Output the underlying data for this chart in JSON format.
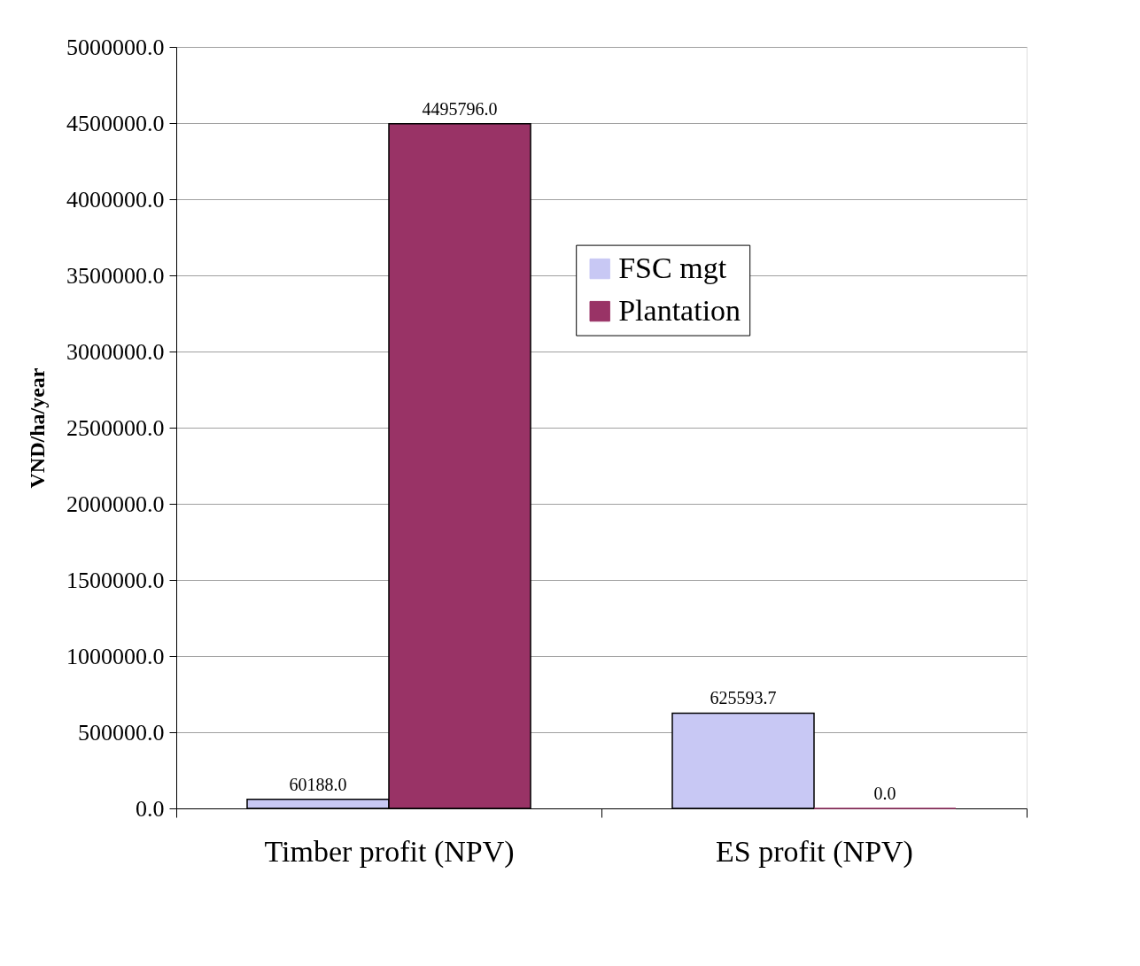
{
  "chart_data": {
    "type": "bar",
    "ylabel": "VND/ha/year",
    "categories": [
      "Timber profit (NPV)",
      "ES profit (NPV)"
    ],
    "series": [
      {
        "name": "FSC mgt",
        "color": "#c8c8f4",
        "values": [
          60188.0,
          625593.7
        ],
        "value_labels": [
          "60188.0",
          "625593.7"
        ]
      },
      {
        "name": "Plantation",
        "color": "#993366",
        "values": [
          4495796.0,
          0.0
        ],
        "value_labels": [
          "4495796.0",
          "0.0"
        ]
      }
    ],
    "ylim": [
      0,
      5000000
    ],
    "yticks": [
      {
        "value": 0,
        "label": "0.0"
      },
      {
        "value": 500000,
        "label": "500000.0"
      },
      {
        "value": 1000000,
        "label": "1000000.0"
      },
      {
        "value": 1500000,
        "label": "1500000.0"
      },
      {
        "value": 2000000,
        "label": "2000000.0"
      },
      {
        "value": 2500000,
        "label": "2500000.0"
      },
      {
        "value": 3000000,
        "label": "3000000.0"
      },
      {
        "value": 3500000,
        "label": "3500000.0"
      },
      {
        "value": 4000000,
        "label": "4000000.0"
      },
      {
        "value": 4500000,
        "label": "4500000.0"
      },
      {
        "value": 5000000,
        "label": "5000000.0"
      }
    ],
    "grid": "y",
    "legend": "top right"
  }
}
